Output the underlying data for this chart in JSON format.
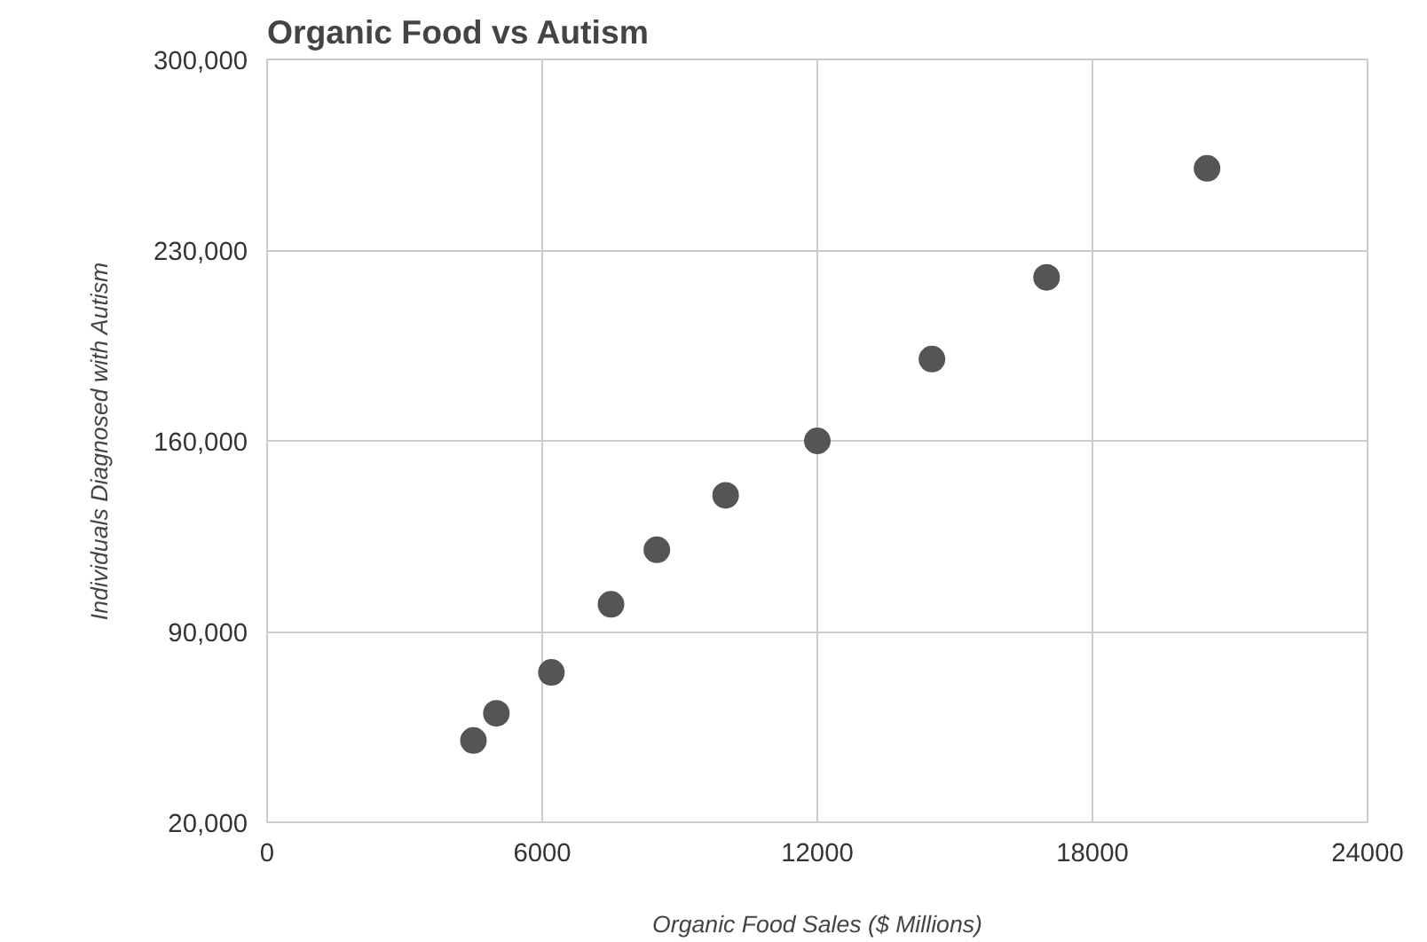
{
  "chart_data": {
    "type": "scatter",
    "title": "Organic Food vs Autism",
    "xlabel": "Organic Food Sales ($ Millions)",
    "ylabel": "Individuals Diagnosed with Autism",
    "x": [
      4500,
      5000,
      6200,
      7500,
      8500,
      10000,
      12000,
      14500,
      17000,
      20500
    ],
    "series": [
      {
        "color": "#555555",
        "values": [
          50000,
          60000,
          75000,
          100000,
          120000,
          140000,
          160000,
          190000,
          220000,
          260000
        ]
      }
    ],
    "xlim": [
      0,
      24000
    ],
    "xticks": [
      0,
      6000,
      12000,
      18000,
      24000
    ],
    "ylim": [
      20000,
      300000
    ],
    "yticks": [
      {
        "value": 20000,
        "label": "20,000"
      },
      {
        "value": 90000,
        "label": "90,000"
      },
      {
        "value": 160000,
        "label": "160,000"
      },
      {
        "value": 230000,
        "label": "230,000"
      },
      {
        "value": 300000,
        "label": "300,000"
      }
    ],
    "grid": true,
    "marker": "circle"
  }
}
